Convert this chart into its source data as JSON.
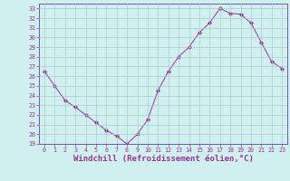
{
  "x": [
    0,
    1,
    2,
    3,
    4,
    5,
    6,
    7,
    8,
    9,
    10,
    11,
    12,
    13,
    14,
    15,
    16,
    17,
    18,
    19,
    20,
    21,
    22,
    23
  ],
  "y": [
    26.5,
    25.0,
    23.5,
    22.8,
    22.0,
    21.2,
    20.4,
    19.8,
    19.0,
    20.0,
    21.5,
    24.5,
    26.5,
    28.0,
    29.0,
    30.5,
    31.5,
    33.0,
    32.5,
    32.4,
    31.5,
    29.5,
    27.5,
    26.8
  ],
  "line_color": "#993399",
  "marker": "D",
  "marker_size": 2.2,
  "bg_color": "#cff0ee",
  "grid_color": "#aacccc",
  "xlabel": "Windchill (Refroidissement éolien,°C)",
  "xlim": [
    -0.5,
    23.5
  ],
  "ylim": [
    19,
    33.5
  ],
  "yticks": [
    19,
    20,
    21,
    22,
    23,
    24,
    25,
    26,
    27,
    28,
    29,
    30,
    31,
    32,
    33
  ],
  "xticks": [
    0,
    1,
    2,
    3,
    4,
    5,
    6,
    7,
    8,
    9,
    10,
    11,
    12,
    13,
    14,
    15,
    16,
    17,
    18,
    19,
    20,
    21,
    22,
    23
  ],
  "tick_fontsize": 4.8,
  "xlabel_fontsize": 6.5,
  "spine_color": "#7755aa",
  "linewidth": 0.7
}
